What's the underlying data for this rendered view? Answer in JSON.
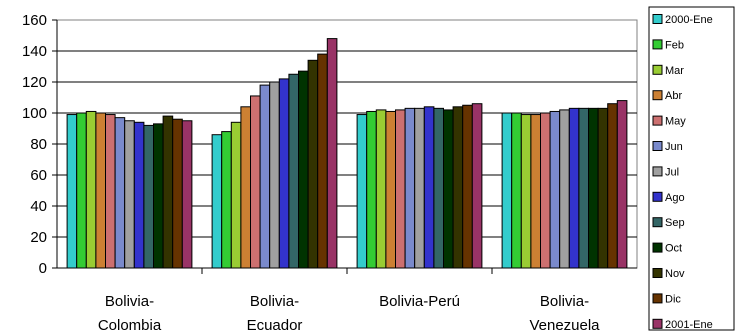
{
  "chart_data": {
    "type": "bar",
    "title": "",
    "xlabel": "",
    "ylabel": "",
    "ylim": [
      0,
      160
    ],
    "yticks": [
      0,
      20,
      40,
      60,
      80,
      100,
      120,
      140,
      160
    ],
    "grid": true,
    "legend_position": "right",
    "categories": [
      [
        "Bolivia-",
        "Colombia"
      ],
      [
        "Bolivia-",
        "Ecuador"
      ],
      [
        "Bolivia-Perú"
      ],
      [
        "Bolivia-",
        "Venezuela"
      ]
    ],
    "series": [
      {
        "name": "2000-Ene",
        "color": "#33CCCC",
        "values": [
          99,
          86,
          99,
          100
        ]
      },
      {
        "name": "Feb",
        "color": "#33CC33",
        "values": [
          100,
          88,
          101,
          100
        ]
      },
      {
        "name": "Mar",
        "color": "#99CC33",
        "values": [
          101,
          94,
          102,
          99
        ]
      },
      {
        "name": "Abr",
        "color": "#CC8033",
        "values": [
          100,
          104,
          101,
          99
        ]
      },
      {
        "name": "May",
        "color": "#CC7070",
        "values": [
          99,
          111,
          102,
          100
        ]
      },
      {
        "name": "Jun",
        "color": "#7A8ACC",
        "values": [
          97,
          118,
          103,
          101
        ]
      },
      {
        "name": "Jul",
        "color": "#A0A0A0",
        "values": [
          95,
          120,
          103,
          102
        ]
      },
      {
        "name": "Ago",
        "color": "#3333CC",
        "values": [
          94,
          122,
          104,
          103
        ]
      },
      {
        "name": "Sep",
        "color": "#336666",
        "values": [
          92,
          125,
          103,
          103
        ]
      },
      {
        "name": "Oct",
        "color": "#003300",
        "values": [
          93,
          127,
          102,
          103
        ]
      },
      {
        "name": "Nov",
        "color": "#333300",
        "values": [
          98,
          134,
          104,
          103
        ]
      },
      {
        "name": "Dic",
        "color": "#663300",
        "values": [
          96,
          138,
          105,
          106
        ]
      },
      {
        "name": "2001-Ene",
        "color": "#993366",
        "values": [
          95,
          148,
          106,
          108
        ]
      }
    ]
  }
}
